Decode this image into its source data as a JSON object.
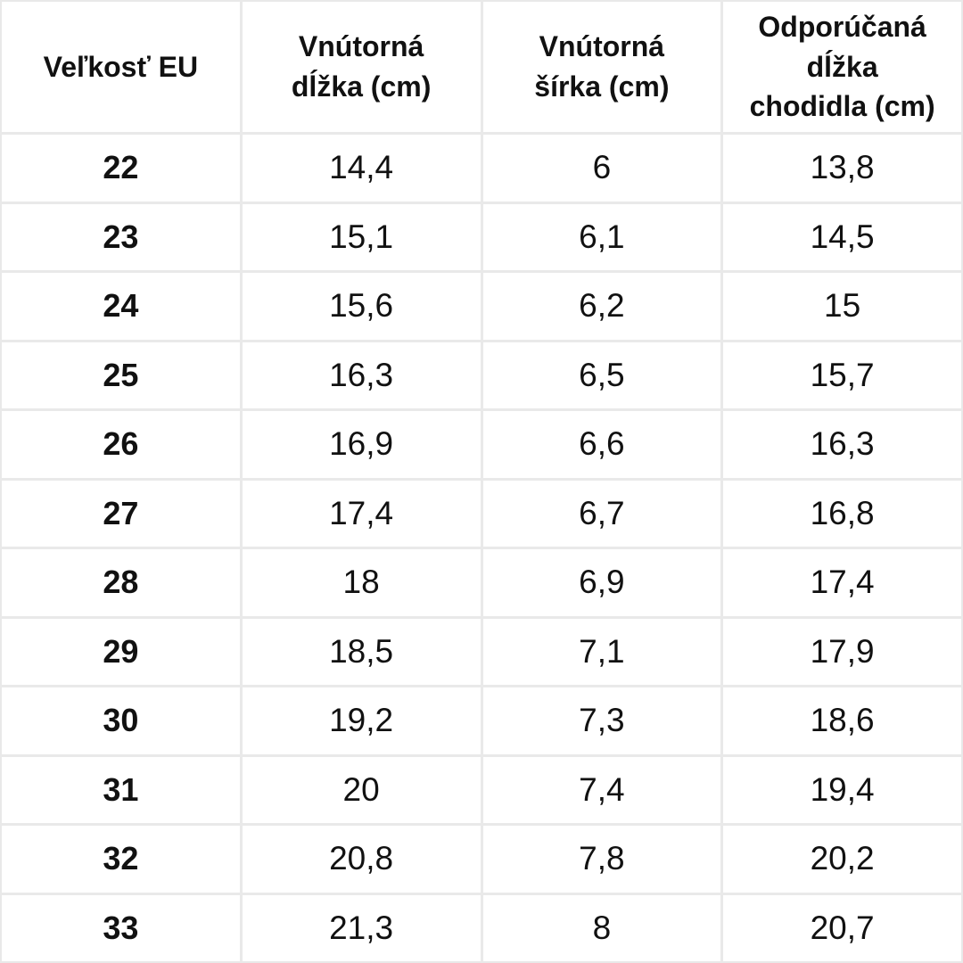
{
  "chart_data": {
    "type": "table",
    "title": "",
    "columns": [
      "Veľkosť EU",
      "Vnútorná dĺžka (cm)",
      "Vnútorná šírka (cm)",
      "Odporúčaná dĺžka chodidla (cm)"
    ],
    "rows": [
      [
        "22",
        "14,4",
        "6",
        "13,8"
      ],
      [
        "23",
        "15,1",
        "6,1",
        "14,5"
      ],
      [
        "24",
        "15,6",
        "6,2",
        "15"
      ],
      [
        "25",
        "16,3",
        "6,5",
        "15,7"
      ],
      [
        "26",
        "16,9",
        "6,6",
        "16,3"
      ],
      [
        "27",
        "17,4",
        "6,7",
        "16,8"
      ],
      [
        "28",
        "18",
        "6,9",
        "17,4"
      ],
      [
        "29",
        "18,5",
        "7,1",
        "17,9"
      ],
      [
        "30",
        "19,2",
        "7,3",
        "18,6"
      ],
      [
        "31",
        "20",
        "7,4",
        "19,4"
      ],
      [
        "32",
        "20,8",
        "7,8",
        "20,2"
      ],
      [
        "33",
        "21,3",
        "8",
        "20,7"
      ]
    ]
  },
  "header_display": {
    "col0": "Veľkosť EU",
    "col1": "Vnútorná\ndĺžka (cm)",
    "col2": "Vnútorná\nšírka (cm)",
    "col3": "Odporúčaná\ndĺžka\nchodidla (cm)"
  },
  "colors": {
    "background": "#ffffff",
    "grid_line": "#e9e9e9",
    "text": "#111111"
  }
}
